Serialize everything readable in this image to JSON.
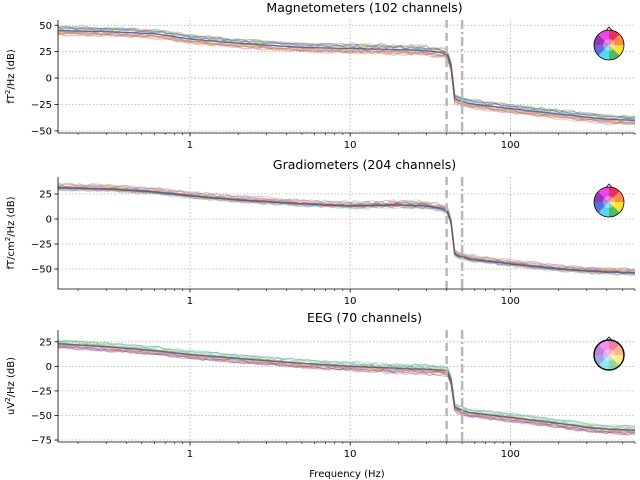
{
  "figure": {
    "xlabel": "Frequency (Hz)",
    "dashed_line_hz": 40,
    "dashdot_line_hz": 50
  },
  "chart_data": [
    {
      "type": "line",
      "title": "Magnetometers (102 channels)",
      "ylabel_main": "fT",
      "ylabel_sup": "2",
      "ylabel_rest": "/Hz (dB)",
      "xscale": "log",
      "xlim": [
        0.15,
        600
      ],
      "ylim": [
        -52,
        55
      ],
      "xticks": [
        1,
        10,
        100
      ],
      "xtick_labels": [
        "1",
        "10",
        "100"
      ],
      "yticks": [
        50,
        25,
        0,
        -25,
        -50
      ],
      "ytick_labels": [
        "50",
        "25",
        "0",
        "−25",
        "−50"
      ],
      "grid": true,
      "n_channels": 102,
      "x": [
        0.15,
        0.3,
        0.6,
        1,
        2,
        5,
        10,
        20,
        30,
        38,
        42,
        45,
        50,
        55,
        100,
        200,
        300,
        400,
        600
      ],
      "y": [
        45,
        44,
        42,
        37,
        33,
        29,
        28,
        27,
        26,
        24,
        20,
        -20,
        -22,
        -24,
        -29,
        -34,
        -37,
        -39,
        -40
      ],
      "sensor_map": "colored-head-sensor-map"
    },
    {
      "type": "line",
      "title": "Gradiometers (204 channels)",
      "ylabel_main": "fT/cm",
      "ylabel_sup": "2",
      "ylabel_rest": "/Hz (dB)",
      "xscale": "log",
      "xlim": [
        0.15,
        600
      ],
      "ylim": [
        -70,
        42
      ],
      "xticks": [
        1,
        10,
        100
      ],
      "xtick_labels": [
        "1",
        "10",
        "100"
      ],
      "yticks": [
        25,
        0,
        -25,
        -50
      ],
      "ytick_labels": [
        "25",
        "0",
        "−25",
        "−50"
      ],
      "grid": true,
      "n_channels": 204,
      "x": [
        0.15,
        0.3,
        0.6,
        1,
        2,
        5,
        10,
        20,
        30,
        38,
        42,
        45,
        50,
        55,
        100,
        200,
        300,
        400,
        600
      ],
      "y": [
        31,
        30,
        27,
        23,
        19,
        15,
        13,
        14,
        13,
        10,
        5,
        -36,
        -38,
        -40,
        -45,
        -50,
        -52,
        -53,
        -54
      ],
      "sensor_map": "colored-head-sensor-map"
    },
    {
      "type": "line",
      "title": "EEG (70 channels)",
      "ylabel_main": "uV",
      "ylabel_sup": "2",
      "ylabel_rest": "/Hz (dB)",
      "xscale": "log",
      "xlim": [
        0.15,
        600
      ],
      "ylim": [
        -77,
        37
      ],
      "xticks": [
        1,
        10,
        100
      ],
      "xtick_labels": [
        "1",
        "10",
        "100"
      ],
      "yticks": [
        25,
        0,
        -25,
        -50,
        -75
      ],
      "ytick_labels": [
        "25",
        "0",
        "−25",
        "−50",
        "−75"
      ],
      "grid": true,
      "n_channels": 70,
      "x": [
        0.15,
        0.3,
        0.6,
        1,
        2,
        5,
        10,
        20,
        30,
        38,
        42,
        45,
        50,
        55,
        100,
        200,
        300,
        400,
        600
      ],
      "y": [
        23,
        20,
        16,
        12,
        8,
        3,
        0,
        -2,
        -3,
        -4,
        -6,
        -42,
        -45,
        -47,
        -52,
        -58,
        -62,
        -64,
        -65
      ],
      "sensor_map": "colored-head-sensor-map"
    }
  ]
}
